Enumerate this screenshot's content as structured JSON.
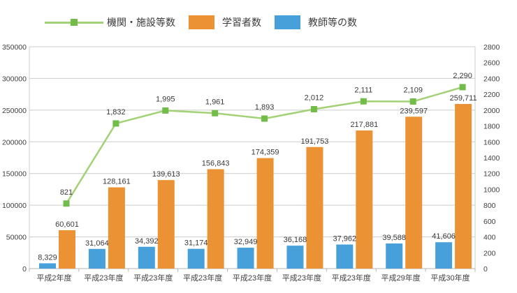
{
  "chart_data": {
    "type": "bar+line",
    "title": "",
    "xlabel": "",
    "ylabel": "",
    "legend_position": "top",
    "grid": true,
    "categories": [
      "平成2年度",
      "平成23年度",
      "平成23年度",
      "平成23年度",
      "平成23年度",
      "平成23年度",
      "平成23年度",
      "平成29年度",
      "平成30年度"
    ],
    "series": [
      {
        "name": "機関・施設等数",
        "type": "line",
        "axis": "right",
        "color": "#A3D175",
        "marker_color": "#72BD49",
        "values": [
          821,
          1832,
          1995,
          1961,
          1893,
          2012,
          2111,
          2109,
          2290
        ],
        "labels": [
          "821",
          "1,832",
          "1,995",
          "1,961",
          "1,893",
          "2,012",
          "2,111",
          "2,109",
          "2,290"
        ]
      },
      {
        "name": "学習者数",
        "type": "bar",
        "axis": "left",
        "color": "#EA9234",
        "values": [
          60601,
          128161,
          139613,
          156843,
          174359,
          191753,
          217881,
          239597,
          259711
        ],
        "labels": [
          "60,601",
          "128,161",
          "139,613",
          "156,843",
          "174,359",
          "191,753",
          "217,881",
          "239,597",
          "259,711"
        ]
      },
      {
        "name": "教師等の数",
        "type": "bar",
        "axis": "left",
        "color": "#47A0D9",
        "values": [
          8329,
          31064,
          34392,
          31174,
          32949,
          36168,
          37962,
          39588,
          41606
        ],
        "labels": [
          "8,329",
          "31,064",
          "34,392",
          "31,174",
          "32,949",
          "36,168",
          "37,962",
          "39,588",
          "41,606"
        ]
      }
    ],
    "left_axis": {
      "min": 0,
      "max": 350000,
      "step": 50000,
      "ticks": [
        "0",
        "50000",
        "100000",
        "150000",
        "200000",
        "250000",
        "300000",
        "350000"
      ]
    },
    "right_axis": {
      "min": 0,
      "max": 2800,
      "step": 200,
      "ticks": [
        "0",
        "200",
        "400",
        "600",
        "800",
        "1000",
        "1200",
        "1400",
        "1600",
        "1800",
        "2000",
        "2200",
        "2400",
        "2600",
        "2800"
      ]
    },
    "colors": {
      "gridline": "#cccccc",
      "axis_line": "#b3b3b3",
      "data_label": "#3a3a3a",
      "tick_label": "#404040"
    }
  }
}
